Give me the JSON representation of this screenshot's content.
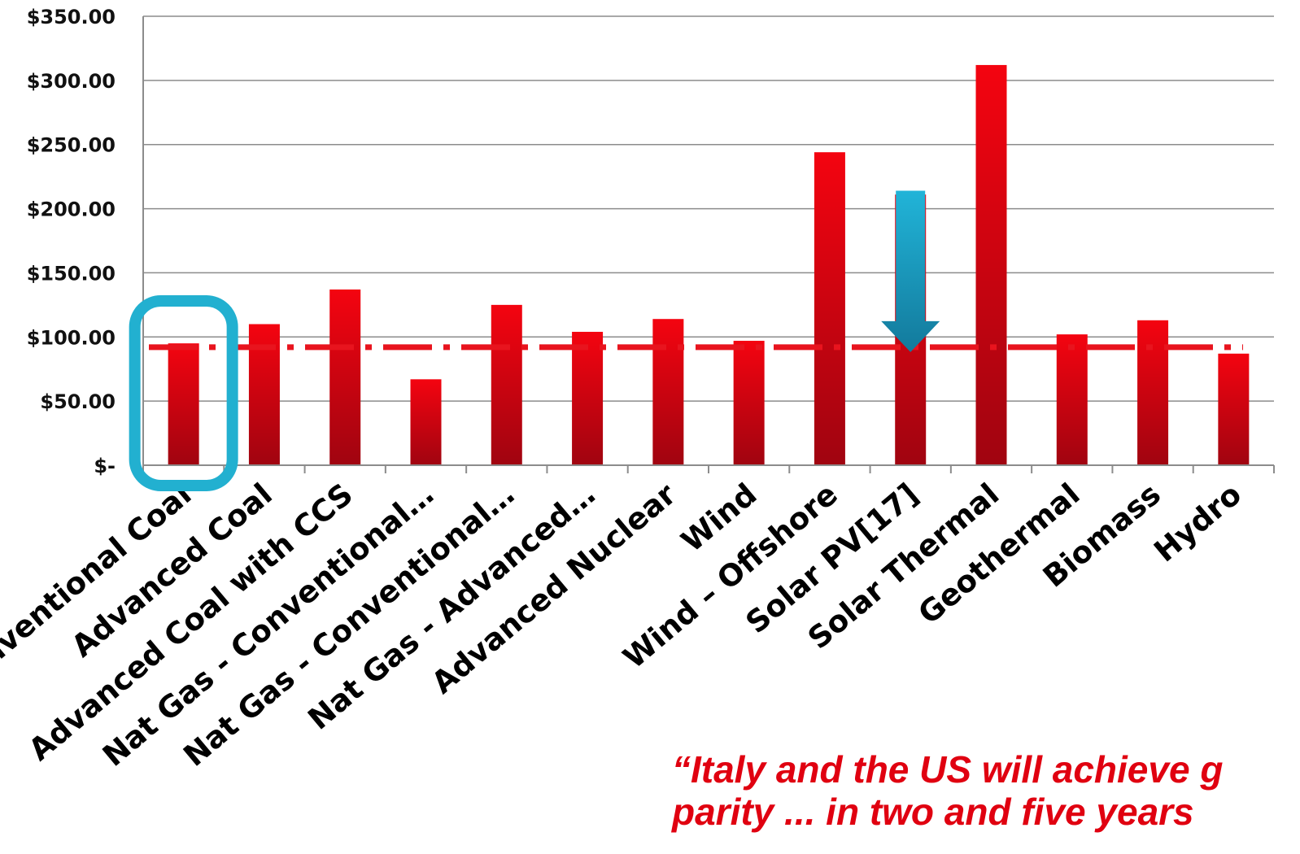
{
  "chart_data": {
    "type": "bar",
    "categories": [
      "Conventional Coal",
      "Advanced Coal",
      "Advanced Coal with CCS",
      "Nat Gas - Conventional…",
      "Nat Gas - Conventional…",
      "Nat Gas - Advanced…",
      "Advanced Nuclear",
      "Wind",
      "Wind – Offshore",
      "Solar PV[17]",
      "Solar Thermal",
      "Geothermal",
      "Biomass",
      "Hydro"
    ],
    "series": [
      {
        "values": [
          95,
          110,
          137,
          67,
          125,
          104,
          114,
          97,
          244,
          211,
          312,
          102,
          113,
          87
        ]
      }
    ],
    "ylim": [
      0,
      350
    ],
    "yticks": [
      0,
      50,
      100,
      150,
      200,
      250,
      300,
      350
    ],
    "ytick_labels": [
      "$-",
      "$50.00",
      "$100.00",
      "$150.00",
      "$200.00",
      "$250.00",
      "$300.00",
      "$350.00"
    ],
    "grid": true,
    "reference_line": {
      "value": 92,
      "style": "dash-dot",
      "color": "#e8141e"
    },
    "highlight_box_category": "Conventional Coal",
    "arrow": {
      "category": "Solar PV[17]",
      "from_value": 214,
      "to_value": 92,
      "color": "#1ba6c9"
    },
    "colors": {
      "bar_top": "#f40410",
      "bar_bottom": "#a00410",
      "highlight": "#22b0d0",
      "arrow": "#1ba6c9",
      "quote": "#e00010",
      "grid": "#8c8c8c"
    },
    "annotation_lines": [
      "“Italy and the US will achieve g",
      "parity ... in two and five years"
    ]
  }
}
